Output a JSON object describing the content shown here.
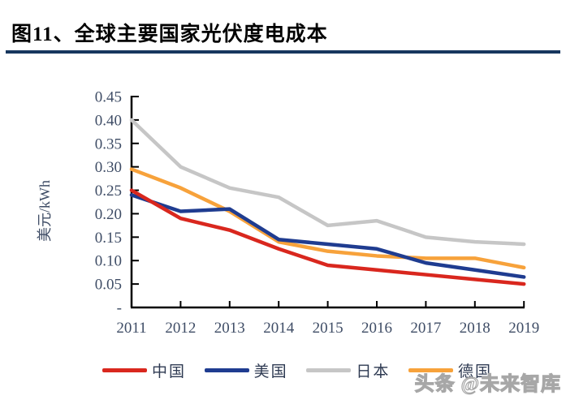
{
  "header": {
    "title": "图11、全球主要国家光伏度电成本"
  },
  "chart_data": {
    "type": "line",
    "x": [
      "2011",
      "2012",
      "2013",
      "2014",
      "2015",
      "2016",
      "2017",
      "2018",
      "2019"
    ],
    "series": [
      {
        "name": "中国",
        "color": "#D9271E",
        "values": [
          0.25,
          0.19,
          0.165,
          0.125,
          0.09,
          0.08,
          0.07,
          0.06,
          0.05
        ]
      },
      {
        "name": "美国",
        "color": "#1F3C90",
        "values": [
          0.24,
          0.205,
          0.21,
          0.145,
          0.135,
          0.125,
          0.095,
          0.08,
          0.065
        ]
      },
      {
        "name": "日本",
        "color": "#C6C6C6",
        "values": [
          0.4,
          0.3,
          0.255,
          0.235,
          0.175,
          0.185,
          0.15,
          0.14,
          0.135
        ]
      },
      {
        "name": "德国",
        "color": "#F7A23B",
        "values": [
          0.295,
          0.255,
          0.205,
          0.14,
          0.12,
          0.11,
          0.105,
          0.105,
          0.085
        ]
      }
    ],
    "title": "",
    "xlabel": "",
    "ylabel": "美元/kWh",
    "ylim": [
      0,
      0.45
    ],
    "ytick_step": 0.05,
    "ytick_labels_top_to_bottom": [
      "0.45",
      "0.40",
      "0.35",
      "0.30",
      "0.25",
      "0.20",
      "0.15",
      "0.10",
      "0.05",
      "-"
    ],
    "grid": false,
    "legend_position": "bottom",
    "axis_color": "#000000",
    "tick_label_color": "#3F4D66"
  },
  "watermark": {
    "text": "头条 @未来智库"
  }
}
